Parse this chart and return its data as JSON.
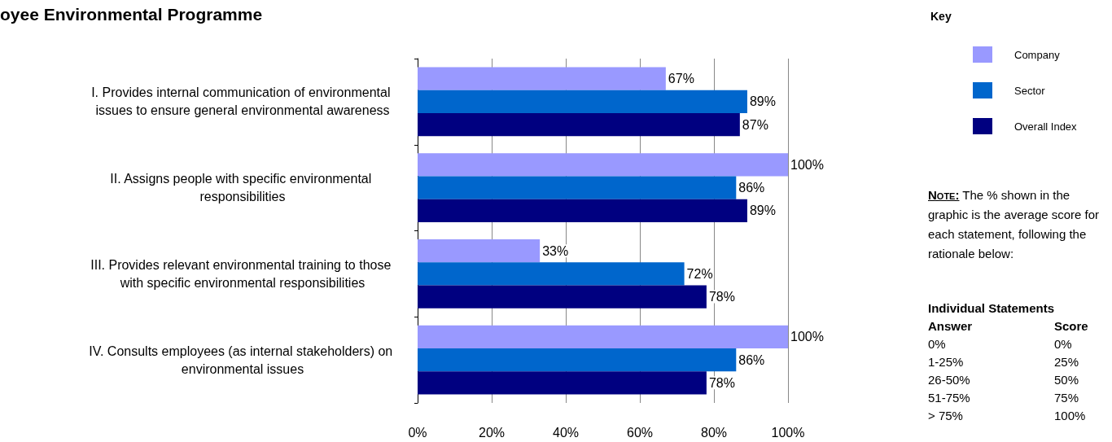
{
  "chart_data": {
    "type": "bar",
    "orientation": "horizontal",
    "title": "oyee Environmental Programme",
    "legend_title": "Key",
    "legend": "right",
    "categories": [
      "I. Provides internal communication of environmental issues to ensure general environmental awareness",
      "II. Assigns people with specific environmental responsibilities",
      "III. Provides relevant environmental training to those with specific environmental responsibilities",
      "IV. Consults employees (as internal stakeholders) on environmental issues"
    ],
    "series": [
      {
        "name": "Company",
        "color": "#9999ff",
        "values": [
          67,
          100,
          33,
          100
        ],
        "value_labels": [
          "67%",
          "100%",
          "33%",
          "100%"
        ]
      },
      {
        "name": "Sector",
        "color": "#0066cc",
        "values": [
          89,
          86,
          72,
          86
        ],
        "value_labels": [
          "89%",
          "86%",
          "72%",
          "86%"
        ]
      },
      {
        "name": "Overall Index",
        "color": "#000080",
        "values": [
          87,
          89,
          78,
          78
        ],
        "value_labels": [
          "87%",
          "89%",
          "78%",
          "78%"
        ]
      }
    ],
    "xlim": [
      0,
      100
    ],
    "xticks": [
      {
        "value": 0,
        "label": "0%"
      },
      {
        "value": 20,
        "label": "20%"
      },
      {
        "value": 40,
        "label": "40%"
      },
      {
        "value": 60,
        "label": "60%"
      },
      {
        "value": 80,
        "label": "80%"
      },
      {
        "value": 100,
        "label": "100%"
      }
    ],
    "grid": "x",
    "annotations": [
      "Note: The % shown in the graphic is the average score for each statement, following the rationale below:",
      "Individual Statements",
      "Answer",
      "Score",
      "0%",
      "0%",
      "1-25%",
      "25%",
      "26-50%",
      "50%",
      "51-75%",
      "75%",
      "> 75%",
      "100%"
    ]
  }
}
